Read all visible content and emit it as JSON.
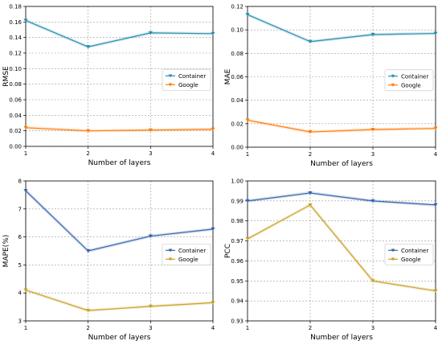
{
  "chart_data": [
    {
      "type": "line",
      "x": [
        1,
        2,
        3,
        4
      ],
      "xticks": [
        "1",
        "2",
        "3",
        "4"
      ],
      "xlim": [
        1,
        4
      ],
      "ylim": [
        0.0,
        0.18
      ],
      "yticks": [
        "0.00",
        "0.02",
        "0.04",
        "0.06",
        "0.08",
        "0.10",
        "0.12",
        "0.14",
        "0.16",
        "0.18"
      ],
      "xlabel": "Number of layers",
      "ylabel": "RMSE",
      "grid": true,
      "legend_position": "center-right",
      "series": [
        {
          "name": "Container",
          "values": [
            0.162,
            0.128,
            0.146,
            0.145
          ],
          "color": "#2a8fb0",
          "marker": "triangle-down"
        },
        {
          "name": "Google",
          "values": [
            0.024,
            0.02,
            0.021,
            0.022
          ],
          "color": "#ff7f0e",
          "marker": "triangle-down"
        }
      ]
    },
    {
      "type": "line",
      "x": [
        1,
        2,
        3,
        4
      ],
      "xticks": [
        "1",
        "2",
        "3",
        "4"
      ],
      "xlim": [
        1,
        4
      ],
      "ylim": [
        0.0,
        0.12
      ],
      "yticks": [
        "0.00",
        "0.02",
        "0.04",
        "0.06",
        "0.08",
        "0.10",
        "0.12"
      ],
      "xlabel": "Number of layers",
      "ylabel": "MAE",
      "grid": true,
      "legend_position": "center-right",
      "series": [
        {
          "name": "Container",
          "values": [
            0.113,
            0.09,
            0.096,
            0.097
          ],
          "color": "#2a8fb0",
          "marker": "triangle-down"
        },
        {
          "name": "Google",
          "values": [
            0.023,
            0.013,
            0.015,
            0.016
          ],
          "color": "#ff7f0e",
          "marker": "triangle-down"
        }
      ]
    },
    {
      "type": "line",
      "x": [
        1,
        2,
        3,
        4
      ],
      "xticks": [
        "1",
        "2",
        "3",
        "4"
      ],
      "xlim": [
        1,
        4
      ],
      "ylim": [
        3,
        8
      ],
      "yticks": [
        "3",
        "4",
        "5",
        "6",
        "7",
        "8"
      ],
      "xlabel": "Number of layers",
      "ylabel": "MAPE(%)",
      "grid": true,
      "legend_position": "center-right",
      "series": [
        {
          "name": "Container",
          "values": [
            7.65,
            5.5,
            6.03,
            6.28
          ],
          "color": "#3566ad",
          "marker": "triangle-down"
        },
        {
          "name": "Google",
          "values": [
            4.1,
            3.37,
            3.52,
            3.65
          ],
          "color": "#c9a227",
          "marker": "triangle-down"
        }
      ]
    },
    {
      "type": "line",
      "x": [
        1,
        2,
        3,
        4
      ],
      "xticks": [
        "1",
        "2",
        "3",
        "4"
      ],
      "xlim": [
        1,
        4
      ],
      "ylim": [
        0.93,
        1.0
      ],
      "yticks": [
        "0.93",
        "0.94",
        "0.95",
        "0.96",
        "0.97",
        "0.98",
        "0.99",
        "1.00"
      ],
      "xlabel": "Number of layers",
      "ylabel": "PCC",
      "grid": true,
      "legend_position": "center-right",
      "series": [
        {
          "name": "Container",
          "values": [
            0.99,
            0.994,
            0.99,
            0.988
          ],
          "color": "#3566ad",
          "marker": "triangle-down"
        },
        {
          "name": "Google",
          "values": [
            0.971,
            0.988,
            0.95,
            0.945
          ],
          "color": "#c9a227",
          "marker": "triangle-down"
        }
      ]
    }
  ]
}
